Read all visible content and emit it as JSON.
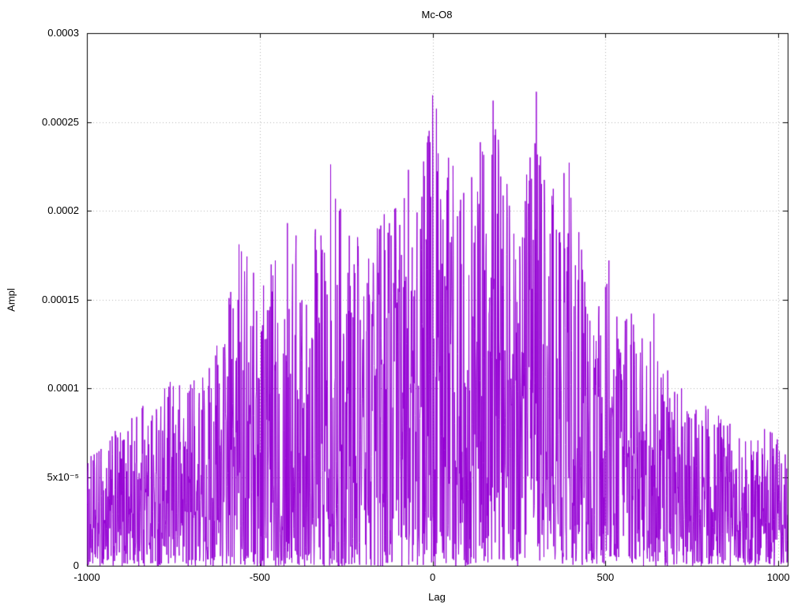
{
  "title": "Mc-O8",
  "xlabel": "Lag",
  "ylabel": "Ampl",
  "chart_data": {
    "type": "line",
    "title": "Mc-O8",
    "xlabel": "Lag",
    "ylabel": "Ampl",
    "xlim": [
      -1000,
      1027
    ],
    "ylim": [
      0,
      0.0003
    ],
    "x_ticks": [
      -1000,
      -500,
      0,
      500,
      1000
    ],
    "x_tick_labels": [
      "-1000",
      "-500",
      "0",
      "500",
      "1000"
    ],
    "y_ticks": [
      0,
      5e-05,
      0.0001,
      0.00015,
      0.0002,
      0.00025,
      0.0003
    ],
    "y_tick_labels": [
      "0",
      "5x10⁻⁵",
      "0.0001",
      "0.00015",
      "0.0002",
      "0.00025",
      "0.0003"
    ],
    "grid": true,
    "legend": "none",
    "line_color": "#9400d3",
    "grid_color": "#b3b3b3",
    "border_color": "#000000",
    "n_points": 2028,
    "x_start": -1000,
    "x_step": 1,
    "seed": 1234,
    "noise_exponent": 1.6,
    "envelope": {
      "x": [
        -1000,
        -950,
        -850,
        -750,
        -650,
        -550,
        -450,
        -400,
        -350,
        -300,
        -250,
        -200,
        -150,
        -100,
        -50,
        0,
        50,
        100,
        150,
        200,
        250,
        300,
        350,
        400,
        450,
        500,
        550,
        600,
        650,
        700,
        750,
        800,
        850,
        900,
        950,
        1027
      ],
      "y": [
        6e-05,
        7e-05,
        9e-05,
        0.000105,
        0.000115,
        0.00018,
        0.000175,
        0.000192,
        0.000188,
        0.000225,
        0.0002,
        0.00018,
        0.0002,
        0.000223,
        0.000195,
        0.000265,
        0.000245,
        0.00021,
        0.00026,
        0.00024,
        0.000185,
        0.000267,
        0.000215,
        0.000227,
        0.00015,
        0.00017,
        0.00014,
        0.000142,
        0.00012,
        0.0001,
        9e-05,
        9e-05,
        8e-05,
        7e-05,
        8e-05,
        7e-05
      ]
    },
    "notable_peaks": [
      {
        "x": -838,
        "y": 9e-05
      },
      {
        "x": -766,
        "y": 9.5e-05
      },
      {
        "x": -695,
        "y": 0.0001
      },
      {
        "x": -640,
        "y": 0.0001
      },
      {
        "x": -600,
        "y": 0.000115
      },
      {
        "x": -560,
        "y": 0.000181
      },
      {
        "x": -545,
        "y": 0.00012
      },
      {
        "x": -520,
        "y": 0.000135
      },
      {
        "x": -455,
        "y": 0.000172
      },
      {
        "x": -420,
        "y": 0.000193
      },
      {
        "x": -395,
        "y": 0.000186
      },
      {
        "x": -365,
        "y": 0.000147
      },
      {
        "x": -340,
        "y": 0.000186
      },
      {
        "x": -320,
        "y": 0.000175
      },
      {
        "x": -295,
        "y": 0.000226
      },
      {
        "x": -270,
        "y": 0.0002
      },
      {
        "x": -245,
        "y": 0.000165
      },
      {
        "x": -215,
        "y": 0.00018
      },
      {
        "x": -185,
        "y": 0.000173
      },
      {
        "x": -160,
        "y": 0.00019
      },
      {
        "x": -140,
        "y": 0.000198
      },
      {
        "x": -120,
        "y": 0.000186
      },
      {
        "x": -95,
        "y": 0.000192
      },
      {
        "x": -70,
        "y": 0.000223
      },
      {
        "x": -45,
        "y": 0.000199
      },
      {
        "x": -10,
        "y": 0.000245
      },
      {
        "x": 0,
        "y": 0.000265
      },
      {
        "x": 30,
        "y": 0.000195
      },
      {
        "x": 60,
        "y": 0.000175
      },
      {
        "x": 90,
        "y": 0.00021
      },
      {
        "x": 120,
        "y": 0.000182
      },
      {
        "x": 145,
        "y": 0.000192
      },
      {
        "x": 175,
        "y": 0.000262
      },
      {
        "x": 190,
        "y": 0.00024
      },
      {
        "x": 215,
        "y": 0.000215
      },
      {
        "x": 235,
        "y": 0.000187
      },
      {
        "x": 260,
        "y": 0.000185
      },
      {
        "x": 300,
        "y": 0.000267
      },
      {
        "x": 315,
        "y": 0.000215
      },
      {
        "x": 340,
        "y": 0.000187
      },
      {
        "x": 370,
        "y": 0.000182
      },
      {
        "x": 395,
        "y": 0.000227
      },
      {
        "x": 420,
        "y": 0.00014
      },
      {
        "x": 455,
        "y": 0.000138
      },
      {
        "x": 480,
        "y": 0.00014
      },
      {
        "x": 510,
        "y": 0.000172
      },
      {
        "x": 540,
        "y": 0.000122
      },
      {
        "x": 575,
        "y": 0.000142
      },
      {
        "x": 640,
        "y": 0.000142
      },
      {
        "x": 680,
        "y": 0.00011
      },
      {
        "x": 720,
        "y": 0.0001
      },
      {
        "x": 790,
        "y": 9e-05
      },
      {
        "x": 860,
        "y": 8e-05
      },
      {
        "x": 905,
        "y": 7e-05
      },
      {
        "x": 960,
        "y": 7.7e-05
      }
    ]
  }
}
